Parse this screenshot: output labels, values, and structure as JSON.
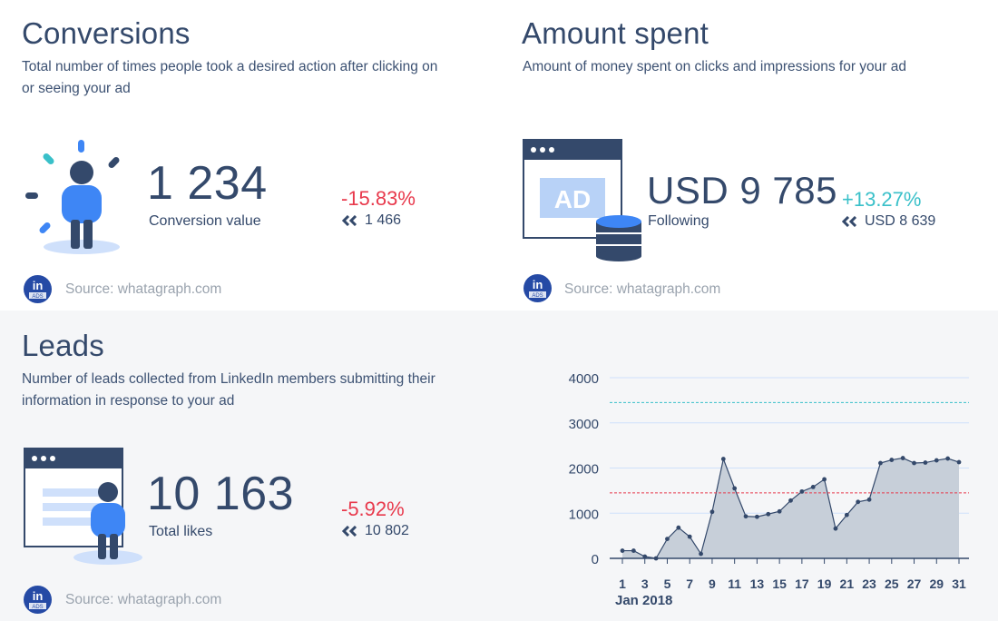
{
  "colors": {
    "primary_text": "#34496b",
    "negative": "#e8394c",
    "positive": "#39c0c9",
    "accent_blue": "#3e86f5",
    "navy": "#34496b",
    "light_blue": "#cfe0fb",
    "badge": "#254aa5",
    "area_fill": "#c7cfd9",
    "area_line": "#34496b",
    "avg_line": "#e8394c",
    "target_line": "#39c0c9"
  },
  "conversions": {
    "title": "Conversions",
    "description": "Total number of times people took a desired action after clicking on or seeing your ad",
    "value": "1 234",
    "value_label": "Conversion value",
    "change": "-15.83%",
    "previous": "1 466",
    "source": "Source: whatagraph.com",
    "badge_text": "in",
    "badge_sub": "ADS"
  },
  "amount_spent": {
    "title": "Amount spent",
    "description": "Amount of money spent on clicks and impressions for your ad",
    "value": "USD 9 785",
    "value_label": "Following",
    "change": "+13.27%",
    "previous": "USD 8 639",
    "ad_text": "AD",
    "source": "Source: whatagraph.com",
    "badge_text": "in",
    "badge_sub": "ADS"
  },
  "leads": {
    "title": "Leads",
    "description": "Number of leads collected from LinkedIn members submitting their information in response to your ad",
    "value": "10 163",
    "value_label": "Total likes",
    "change": "-5.92%",
    "previous": "10 802",
    "source": "Source: whatagraph.com",
    "badge_text": "in",
    "badge_sub": "ADS"
  },
  "chart_data": {
    "type": "area",
    "x": [
      1,
      2,
      3,
      4,
      5,
      6,
      7,
      8,
      9,
      10,
      11,
      12,
      13,
      14,
      15,
      16,
      17,
      18,
      19,
      20,
      21,
      22,
      23,
      24,
      25,
      26,
      27,
      28,
      29,
      30,
      31
    ],
    "values": [
      170,
      170,
      40,
      0,
      430,
      680,
      480,
      100,
      1030,
      2200,
      1550,
      930,
      920,
      980,
      1040,
      1280,
      1480,
      1580,
      1750,
      660,
      960,
      1250,
      1300,
      2110,
      2180,
      2220,
      2110,
      2120,
      2170,
      2210,
      2130
    ],
    "x_tick_labels": [
      "1",
      "3",
      "5",
      "7",
      "9",
      "11",
      "13",
      "15",
      "17",
      "19",
      "21",
      "23",
      "25",
      "27",
      "29",
      "31"
    ],
    "x_tick_values": [
      1,
      3,
      5,
      7,
      9,
      11,
      13,
      15,
      17,
      19,
      21,
      23,
      25,
      27,
      29,
      31
    ],
    "xlabel": "Jan 2018",
    "y_ticks": [
      "0",
      "1000",
      "2000",
      "3000",
      "4000"
    ],
    "y_tick_values": [
      0,
      1000,
      2000,
      3000,
      4000
    ],
    "ylim": [
      0,
      4000
    ],
    "average_line": 1450,
    "target_line": 3450,
    "grid": true
  }
}
